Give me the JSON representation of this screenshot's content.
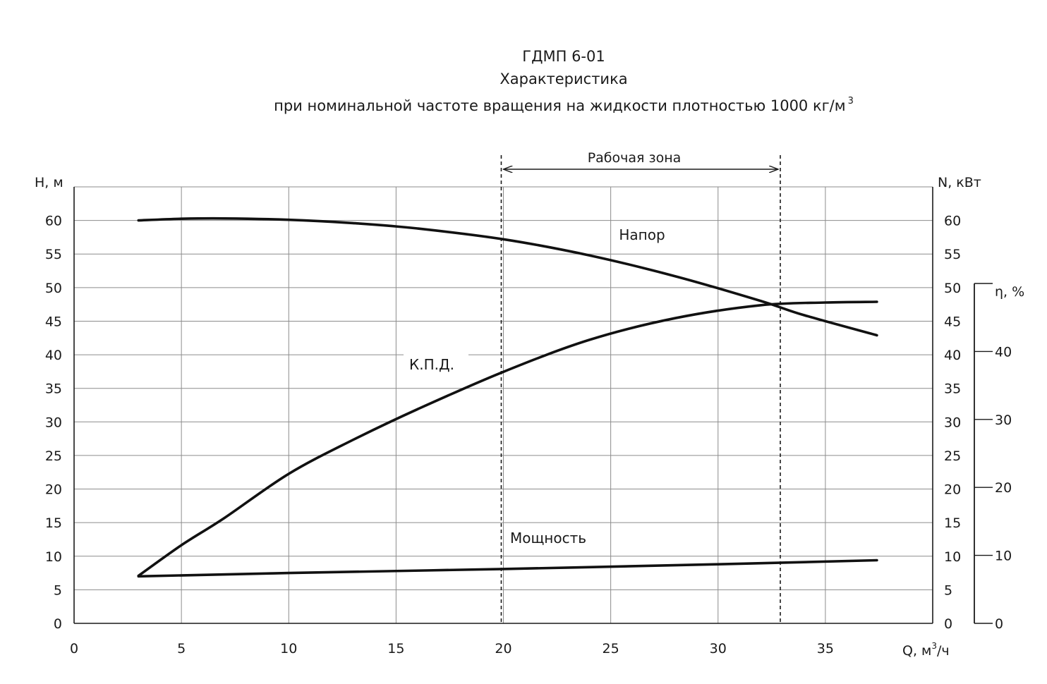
{
  "titles": {
    "line1": "ГДМП 6-01",
    "line2": "Характеристика",
    "line3": "при номинальной  частоте  вращения  на жидкости  плотностью  1000  кг/м",
    "line3_sup": "3"
  },
  "chart_data": {
    "type": "line",
    "xlabel": "Q, м",
    "xlabel_sup": "3",
    "xlabel_suffix": "/ч",
    "ylabel_left": "Н, м",
    "ylabel_right": "N, кВт",
    "ylabel_eta": "η, %",
    "xlim": [
      0,
      40
    ],
    "ylim": [
      0,
      65
    ],
    "eta_lim": [
      0,
      50
    ],
    "x_ticks": [
      0,
      5,
      10,
      15,
      20,
      25,
      30,
      35
    ],
    "y_ticks": [
      0,
      5,
      10,
      15,
      20,
      25,
      30,
      35,
      40,
      45,
      50,
      55,
      60
    ],
    "eta_ticks": [
      0,
      10,
      20,
      30,
      40
    ],
    "grid": true,
    "working_zone": {
      "label": "Рабочая  зона",
      "x_start": 19.9,
      "x_end": 32.9
    },
    "series": [
      {
        "name": "Напор",
        "axis": "left",
        "x": [
          3,
          5,
          7,
          10,
          13,
          16,
          20,
          24,
          28,
          32,
          34,
          37.4
        ],
        "y": [
          60,
          60.25,
          60.3,
          60.1,
          59.6,
          58.8,
          57.2,
          54.8,
          51.7,
          48,
          45.9,
          42.9
        ]
      },
      {
        "name": "К.П.Д.",
        "axis": "eta",
        "x": [
          3,
          5,
          7,
          10,
          13,
          16,
          20,
          24,
          28,
          32,
          35,
          37.4
        ],
        "y": [
          7,
          11.5,
          15.5,
          22,
          27,
          31.5,
          37,
          41.7,
          44.9,
          46.8,
          47.2,
          47.3
        ]
      },
      {
        "name": "Мощность",
        "axis": "right",
        "x": [
          3,
          10,
          20,
          30,
          37.4
        ],
        "y": [
          7,
          7.5,
          8.1,
          8.8,
          9.4
        ]
      }
    ],
    "curve_labels": {
      "head": "Напор",
      "efficiency": "К.П.Д.",
      "power": "Мощность"
    }
  }
}
